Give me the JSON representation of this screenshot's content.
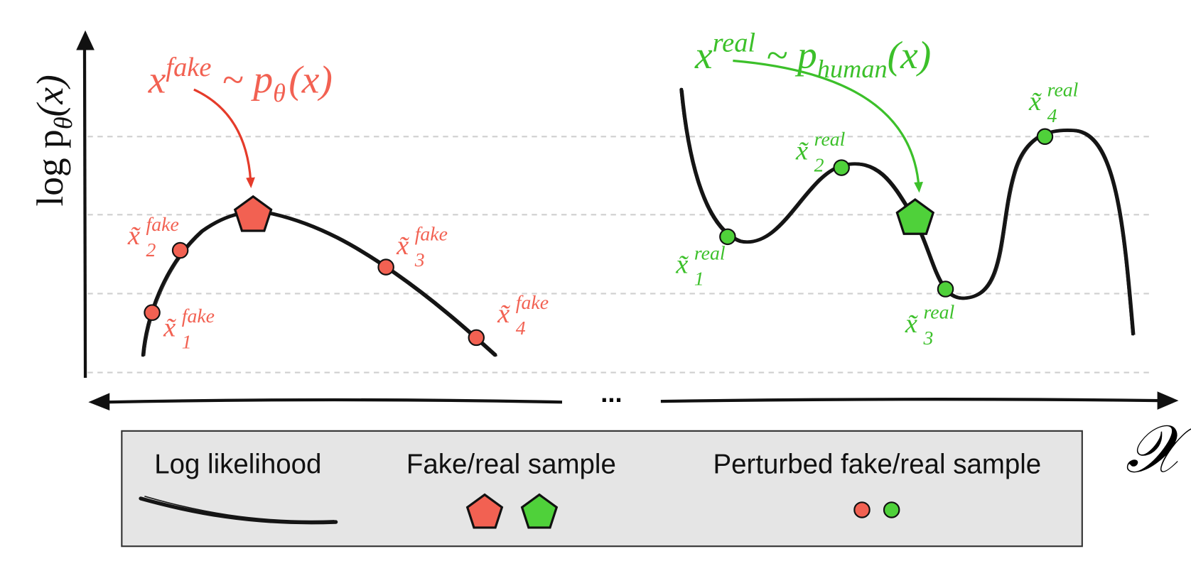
{
  "y_axis_label": {
    "base": "log p",
    "sub": "θ",
    "arg": "(x)"
  },
  "x_axis_label": "𝒳",
  "ellipsis": "...",
  "fake_annotation": {
    "base": "x",
    "sup": "fake",
    "rel": "~ p",
    "sub": "θ",
    "arg": "(x)"
  },
  "real_annotation": {
    "base": "x",
    "sup": "real",
    "rel": "~ p",
    "sub": "human",
    "arg": "(x)"
  },
  "perturbed_fake": [
    {
      "base": "x̃",
      "sup": "fake",
      "sub": "1"
    },
    {
      "base": "x̃",
      "sup": "fake",
      "sub": "2"
    },
    {
      "base": "x̃",
      "sup": "fake",
      "sub": "3"
    },
    {
      "base": "x̃",
      "sup": "fake",
      "sub": "4"
    }
  ],
  "perturbed_real": [
    {
      "base": "x̃",
      "sup": "real",
      "sub": "1"
    },
    {
      "base": "x̃",
      "sup": "real",
      "sub": "2"
    },
    {
      "base": "x̃",
      "sup": "real",
      "sub": "3"
    },
    {
      "base": "x̃",
      "sup": "real",
      "sub": "4"
    }
  ],
  "legend": {
    "items": [
      "Log likelihood",
      "Fake/real sample",
      "Perturbed fake/real sample"
    ]
  }
}
